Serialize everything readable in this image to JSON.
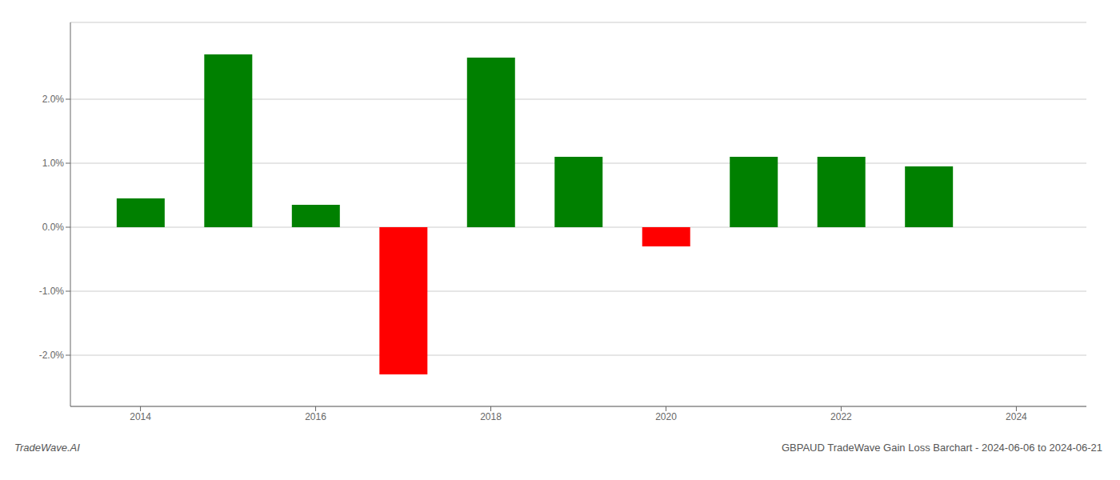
{
  "chart_data": {
    "type": "bar",
    "title": "GBPAUD TradeWave Gain Loss Barchart - 2024-06-06 to 2024-06-21",
    "subtitle": "TradeWave.AI",
    "x": [
      2014,
      2015,
      2016,
      2017,
      2018,
      2019,
      2020,
      2021,
      2022,
      2023
    ],
    "values": [
      0.0045,
      0.027,
      0.0035,
      -0.023,
      0.0265,
      0.011,
      -0.003,
      0.011,
      0.011,
      0.0095
    ],
    "colors": [
      "#008000",
      "#008000",
      "#008000",
      "#ff0000",
      "#008000",
      "#008000",
      "#ff0000",
      "#008000",
      "#008000",
      "#008000"
    ],
    "xlim": [
      2013.2,
      2024.8
    ],
    "xticks": [
      2014,
      2016,
      2018,
      2020,
      2022,
      2024
    ],
    "ylim": [
      -0.028,
      0.032
    ],
    "yticks": [
      {
        "value": -0.02,
        "label": "-2.0%"
      },
      {
        "value": -0.01,
        "label": "-1.0%"
      },
      {
        "value": 0.0,
        "label": "0.0%"
      },
      {
        "value": 0.01,
        "label": "1.0%"
      },
      {
        "value": 0.02,
        "label": "2.0%"
      }
    ],
    "grid": true
  }
}
